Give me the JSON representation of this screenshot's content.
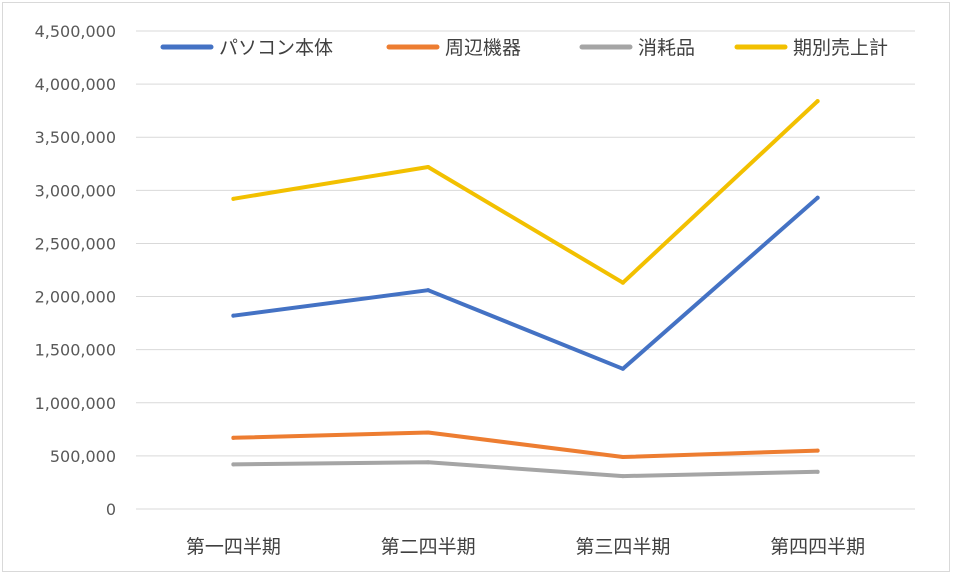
{
  "chart_data": {
    "type": "line",
    "title": "",
    "xlabel": "",
    "ylabel": "",
    "categories": [
      "第一四半期",
      "第二四半期",
      "第三四半期",
      "第四四半期"
    ],
    "ylim": [
      0,
      4500000
    ],
    "yticks": [
      0,
      500000,
      1000000,
      1500000,
      2000000,
      2500000,
      3000000,
      3500000,
      4000000,
      4500000
    ],
    "ytick_labels": [
      "0",
      "500,000",
      "1,000,000",
      "1,500,000",
      "2,000,000",
      "2,500,000",
      "3,000,000",
      "3,500,000",
      "4,000,000",
      "4,500,000"
    ],
    "grid": true,
    "legend_position": "top",
    "series": [
      {
        "name": "パソコン本体",
        "color": "#4472c4",
        "values": [
          1820000,
          2060000,
          1320000,
          2930000
        ]
      },
      {
        "name": "周辺機器",
        "color": "#ed7d31",
        "values": [
          670000,
          720000,
          490000,
          550000
        ]
      },
      {
        "name": "消耗品",
        "color": "#a5a5a5",
        "values": [
          420000,
          440000,
          310000,
          350000
        ]
      },
      {
        "name": "期別売上計",
        "color": "#f2c000",
        "values": [
          2920000,
          3220000,
          2130000,
          3840000
        ]
      }
    ]
  }
}
